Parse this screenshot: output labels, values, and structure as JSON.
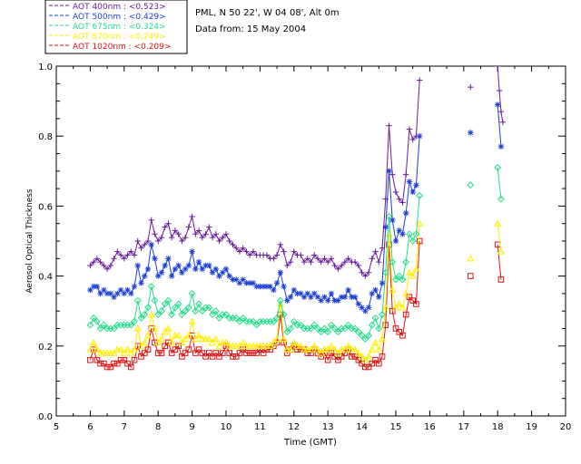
{
  "header": {
    "station": "PML, N 50 22', W 04 08', Alt 0m",
    "date": "Data from: 15 May 2004"
  },
  "chart_data": {
    "type": "line",
    "xlabel": "Time (GMT)",
    "ylabel": "Aerosol Optical Thickness",
    "xlim": [
      5,
      20
    ],
    "ylim": [
      0.0,
      1.0
    ],
    "xticks": [
      "5",
      "6",
      "7",
      "8",
      "9",
      "10",
      "11",
      "12",
      "13",
      "14",
      "15",
      "16",
      "17",
      "18",
      "19",
      "20"
    ],
    "yticks": [
      "0.0",
      "0.2",
      "0.4",
      "0.6",
      "0.8",
      "1.0"
    ],
    "legend_position": "top-left",
    "series": [
      {
        "name": "AOT  400nm : <0.523>",
        "color": "#6a1b9a",
        "marker": "plus",
        "x": [
          6.0,
          6.1,
          6.2,
          6.3,
          6.4,
          6.5,
          6.6,
          6.7,
          6.8,
          6.9,
          7.0,
          7.1,
          7.2,
          7.3,
          7.4,
          7.5,
          7.6,
          7.7,
          7.8,
          7.9,
          8.0,
          8.1,
          8.2,
          8.3,
          8.4,
          8.5,
          8.6,
          8.7,
          8.8,
          8.9,
          9.0,
          9.1,
          9.2,
          9.3,
          9.4,
          9.5,
          9.6,
          9.7,
          9.8,
          9.9,
          10.0,
          10.1,
          10.2,
          10.3,
          10.4,
          10.5,
          10.6,
          10.7,
          10.8,
          10.9,
          11.0,
          11.1,
          11.2,
          11.3,
          11.4,
          11.5,
          11.6,
          11.7,
          11.8,
          11.9,
          12.0,
          12.1,
          12.2,
          12.3,
          12.4,
          12.5,
          12.6,
          12.7,
          12.8,
          12.9,
          13.0,
          13.1,
          13.2,
          13.3,
          13.4,
          13.5,
          13.6,
          13.7,
          13.8,
          13.9,
          14.0,
          14.1,
          14.2,
          14.3,
          14.4,
          14.5,
          14.6,
          14.7,
          14.8,
          14.9,
          15.0,
          15.1,
          15.2,
          15.3,
          15.4,
          15.5,
          15.6,
          15.7,
          17.2,
          18.0,
          18.05,
          18.1,
          18.15
        ],
        "values": [
          0.43,
          0.44,
          0.45,
          0.44,
          0.43,
          0.42,
          0.43,
          0.45,
          0.47,
          0.46,
          0.45,
          0.46,
          0.47,
          0.46,
          0.5,
          0.48,
          0.49,
          0.5,
          0.56,
          0.52,
          0.5,
          0.51,
          0.54,
          0.55,
          0.51,
          0.53,
          0.52,
          0.5,
          0.51,
          0.54,
          0.57,
          0.52,
          0.53,
          0.51,
          0.52,
          0.54,
          0.51,
          0.52,
          0.5,
          0.51,
          0.52,
          0.5,
          0.49,
          0.48,
          0.47,
          0.48,
          0.47,
          0.46,
          0.47,
          0.46,
          0.46,
          0.46,
          0.46,
          0.45,
          0.45,
          0.46,
          0.49,
          0.47,
          0.43,
          0.44,
          0.47,
          0.46,
          0.46,
          0.44,
          0.45,
          0.44,
          0.46,
          0.45,
          0.44,
          0.45,
          0.44,
          0.45,
          0.43,
          0.42,
          0.43,
          0.44,
          0.45,
          0.44,
          0.44,
          0.43,
          0.41,
          0.4,
          0.41,
          0.45,
          0.47,
          0.44,
          0.48,
          0.62,
          0.83,
          0.69,
          0.64,
          0.62,
          0.61,
          0.69,
          0.82,
          0.79,
          0.8,
          0.96,
          0.94,
          1.0,
          0.93,
          0.87,
          0.84
        ]
      },
      {
        "name": "AOT  500nm : <0.429>",
        "color": "#1a3fd6",
        "marker": "asterisk",
        "x": [
          6.0,
          6.1,
          6.2,
          6.3,
          6.4,
          6.5,
          6.6,
          6.7,
          6.8,
          6.9,
          7.0,
          7.1,
          7.2,
          7.3,
          7.4,
          7.5,
          7.6,
          7.7,
          7.8,
          7.9,
          8.0,
          8.1,
          8.2,
          8.3,
          8.4,
          8.5,
          8.6,
          8.7,
          8.8,
          8.9,
          9.0,
          9.1,
          9.2,
          9.3,
          9.4,
          9.5,
          9.6,
          9.7,
          9.8,
          9.9,
          10.0,
          10.1,
          10.2,
          10.3,
          10.4,
          10.5,
          10.6,
          10.7,
          10.8,
          10.9,
          11.0,
          11.1,
          11.2,
          11.3,
          11.4,
          11.5,
          11.6,
          11.7,
          11.8,
          11.9,
          12.0,
          12.1,
          12.2,
          12.3,
          12.4,
          12.5,
          12.6,
          12.7,
          12.8,
          12.9,
          13.0,
          13.1,
          13.2,
          13.3,
          13.4,
          13.5,
          13.6,
          13.7,
          13.8,
          13.9,
          14.0,
          14.1,
          14.2,
          14.3,
          14.4,
          14.5,
          14.6,
          14.7,
          14.8,
          14.9,
          15.0,
          15.1,
          15.2,
          15.3,
          15.4,
          15.5,
          15.6,
          15.7,
          17.2,
          18.0,
          18.1
        ],
        "values": [
          0.36,
          0.37,
          0.37,
          0.35,
          0.36,
          0.35,
          0.35,
          0.34,
          0.35,
          0.36,
          0.35,
          0.36,
          0.35,
          0.37,
          0.43,
          0.38,
          0.4,
          0.42,
          0.49,
          0.45,
          0.4,
          0.41,
          0.43,
          0.45,
          0.4,
          0.42,
          0.43,
          0.41,
          0.42,
          0.43,
          0.47,
          0.42,
          0.44,
          0.42,
          0.43,
          0.43,
          0.41,
          0.42,
          0.4,
          0.41,
          0.42,
          0.4,
          0.39,
          0.39,
          0.38,
          0.39,
          0.38,
          0.38,
          0.38,
          0.37,
          0.37,
          0.37,
          0.37,
          0.37,
          0.36,
          0.38,
          0.41,
          0.37,
          0.33,
          0.34,
          0.36,
          0.35,
          0.35,
          0.34,
          0.35,
          0.34,
          0.35,
          0.34,
          0.33,
          0.34,
          0.33,
          0.35,
          0.33,
          0.33,
          0.34,
          0.34,
          0.36,
          0.34,
          0.34,
          0.32,
          0.31,
          0.3,
          0.31,
          0.35,
          0.36,
          0.34,
          0.38,
          0.54,
          0.7,
          0.56,
          0.5,
          0.53,
          0.52,
          0.58,
          0.67,
          0.64,
          0.66,
          0.8,
          0.81,
          0.89,
          0.77
        ]
      },
      {
        "name": "AOT  675nm : <0.324>",
        "color": "#22dd88",
        "marker": "diamond",
        "x": [
          6.0,
          6.1,
          6.2,
          6.3,
          6.4,
          6.5,
          6.6,
          6.7,
          6.8,
          6.9,
          7.0,
          7.1,
          7.2,
          7.3,
          7.4,
          7.5,
          7.6,
          7.7,
          7.8,
          7.9,
          8.0,
          8.1,
          8.2,
          8.3,
          8.4,
          8.5,
          8.6,
          8.7,
          8.8,
          8.9,
          9.0,
          9.1,
          9.2,
          9.3,
          9.4,
          9.5,
          9.6,
          9.7,
          9.8,
          9.9,
          10.0,
          10.1,
          10.2,
          10.3,
          10.4,
          10.5,
          10.6,
          10.7,
          10.8,
          10.9,
          11.0,
          11.1,
          11.2,
          11.3,
          11.4,
          11.5,
          11.6,
          11.7,
          11.8,
          11.9,
          12.0,
          12.1,
          12.2,
          12.3,
          12.4,
          12.5,
          12.6,
          12.7,
          12.8,
          12.9,
          13.0,
          13.1,
          13.2,
          13.3,
          13.4,
          13.5,
          13.6,
          13.7,
          13.8,
          13.9,
          14.0,
          14.1,
          14.2,
          14.3,
          14.4,
          14.5,
          14.6,
          14.7,
          14.8,
          14.9,
          15.0,
          15.1,
          15.2,
          15.3,
          15.4,
          15.5,
          15.6,
          15.7,
          17.2,
          18.0,
          18.1
        ],
        "values": [
          0.26,
          0.28,
          0.27,
          0.25,
          0.26,
          0.25,
          0.25,
          0.25,
          0.26,
          0.26,
          0.26,
          0.26,
          0.26,
          0.27,
          0.33,
          0.28,
          0.29,
          0.31,
          0.37,
          0.33,
          0.29,
          0.3,
          0.32,
          0.33,
          0.29,
          0.31,
          0.32,
          0.29,
          0.3,
          0.31,
          0.35,
          0.3,
          0.32,
          0.3,
          0.31,
          0.31,
          0.29,
          0.3,
          0.28,
          0.29,
          0.29,
          0.28,
          0.28,
          0.28,
          0.27,
          0.28,
          0.27,
          0.27,
          0.27,
          0.26,
          0.27,
          0.27,
          0.27,
          0.27,
          0.27,
          0.28,
          0.33,
          0.29,
          0.24,
          0.25,
          0.27,
          0.26,
          0.26,
          0.25,
          0.25,
          0.25,
          0.26,
          0.25,
          0.24,
          0.25,
          0.24,
          0.26,
          0.25,
          0.24,
          0.25,
          0.25,
          0.26,
          0.25,
          0.25,
          0.24,
          0.23,
          0.22,
          0.23,
          0.26,
          0.28,
          0.25,
          0.29,
          0.41,
          0.57,
          0.44,
          0.39,
          0.4,
          0.39,
          0.44,
          0.52,
          0.5,
          0.52,
          0.63,
          0.66,
          0.71,
          0.62
        ]
      },
      {
        "name": "AOT  870nm : <0.249>",
        "color": "#ffee00",
        "marker": "triangle",
        "x": [
          6.0,
          6.1,
          6.2,
          6.3,
          6.4,
          6.5,
          6.6,
          6.7,
          6.8,
          6.9,
          7.0,
          7.1,
          7.2,
          7.3,
          7.4,
          7.5,
          7.6,
          7.7,
          7.8,
          7.9,
          8.0,
          8.1,
          8.2,
          8.3,
          8.4,
          8.5,
          8.6,
          8.7,
          8.8,
          8.9,
          9.0,
          9.1,
          9.2,
          9.3,
          9.4,
          9.5,
          9.6,
          9.7,
          9.8,
          9.9,
          10.0,
          10.1,
          10.2,
          10.3,
          10.4,
          10.5,
          10.6,
          10.7,
          10.8,
          10.9,
          11.0,
          11.1,
          11.2,
          11.3,
          11.4,
          11.5,
          11.6,
          11.7,
          11.8,
          11.9,
          12.0,
          12.1,
          12.2,
          12.3,
          12.4,
          12.5,
          12.6,
          12.7,
          12.8,
          12.9,
          13.0,
          13.1,
          13.2,
          13.3,
          13.4,
          13.5,
          13.6,
          13.7,
          13.8,
          13.9,
          14.0,
          14.1,
          14.2,
          14.3,
          14.4,
          14.5,
          14.6,
          14.7,
          14.8,
          14.9,
          15.0,
          15.1,
          15.2,
          15.3,
          15.4,
          15.5,
          15.6,
          15.7,
          17.2,
          18.0,
          18.1
        ],
        "values": [
          0.19,
          0.21,
          0.19,
          0.18,
          0.18,
          0.18,
          0.18,
          0.18,
          0.19,
          0.19,
          0.18,
          0.19,
          0.18,
          0.19,
          0.25,
          0.2,
          0.21,
          0.23,
          0.29,
          0.25,
          0.21,
          0.22,
          0.24,
          0.25,
          0.21,
          0.23,
          0.23,
          0.21,
          0.22,
          0.23,
          0.27,
          0.22,
          0.23,
          0.22,
          0.22,
          0.22,
          0.21,
          0.22,
          0.2,
          0.21,
          0.21,
          0.2,
          0.2,
          0.2,
          0.2,
          0.21,
          0.2,
          0.2,
          0.2,
          0.2,
          0.2,
          0.2,
          0.2,
          0.2,
          0.21,
          0.22,
          0.32,
          0.22,
          0.19,
          0.19,
          0.21,
          0.2,
          0.2,
          0.19,
          0.19,
          0.19,
          0.2,
          0.19,
          0.18,
          0.19,
          0.19,
          0.2,
          0.19,
          0.18,
          0.19,
          0.19,
          0.2,
          0.19,
          0.19,
          0.18,
          0.17,
          0.16,
          0.17,
          0.19,
          0.21,
          0.19,
          0.22,
          0.31,
          0.52,
          0.36,
          0.31,
          0.32,
          0.31,
          0.35,
          0.41,
          0.4,
          0.42,
          0.55,
          0.45,
          0.55,
          0.47
        ]
      },
      {
        "name": "AOT 1020nm : <0.209>",
        "color": "#dd1111",
        "marker": "square",
        "x": [
          6.0,
          6.1,
          6.2,
          6.3,
          6.4,
          6.5,
          6.6,
          6.7,
          6.8,
          6.9,
          7.0,
          7.1,
          7.2,
          7.3,
          7.4,
          7.5,
          7.6,
          7.7,
          7.8,
          7.9,
          8.0,
          8.1,
          8.2,
          8.3,
          8.4,
          8.5,
          8.6,
          8.7,
          8.8,
          8.9,
          9.0,
          9.1,
          9.2,
          9.3,
          9.4,
          9.5,
          9.6,
          9.7,
          9.8,
          9.9,
          10.0,
          10.1,
          10.2,
          10.3,
          10.4,
          10.5,
          10.6,
          10.7,
          10.8,
          10.9,
          11.0,
          11.1,
          11.2,
          11.3,
          11.4,
          11.5,
          11.6,
          11.7,
          11.8,
          11.9,
          12.0,
          12.1,
          12.2,
          12.3,
          12.4,
          12.5,
          12.6,
          12.7,
          12.8,
          12.9,
          13.0,
          13.1,
          13.2,
          13.3,
          13.4,
          13.5,
          13.6,
          13.7,
          13.8,
          13.9,
          14.0,
          14.1,
          14.2,
          14.3,
          14.4,
          14.5,
          14.6,
          14.7,
          14.8,
          14.9,
          15.0,
          15.1,
          15.2,
          15.3,
          15.4,
          15.5,
          15.6,
          15.7,
          17.2,
          18.0,
          18.1
        ],
        "values": [
          0.16,
          0.19,
          0.16,
          0.15,
          0.15,
          0.14,
          0.14,
          0.15,
          0.15,
          0.16,
          0.16,
          0.15,
          0.14,
          0.16,
          0.2,
          0.17,
          0.18,
          0.19,
          0.25,
          0.21,
          0.18,
          0.18,
          0.2,
          0.21,
          0.18,
          0.19,
          0.2,
          0.17,
          0.18,
          0.19,
          0.23,
          0.18,
          0.19,
          0.18,
          0.17,
          0.18,
          0.17,
          0.18,
          0.17,
          0.18,
          0.2,
          0.18,
          0.17,
          0.17,
          0.18,
          0.19,
          0.18,
          0.18,
          0.18,
          0.18,
          0.19,
          0.18,
          0.19,
          0.19,
          0.2,
          0.21,
          0.29,
          0.21,
          0.18,
          0.19,
          0.2,
          0.19,
          0.19,
          0.19,
          0.18,
          0.18,
          0.19,
          0.18,
          0.17,
          0.18,
          0.16,
          0.18,
          0.17,
          0.16,
          0.17,
          0.18,
          0.19,
          0.17,
          0.17,
          0.16,
          0.15,
          0.14,
          0.14,
          0.15,
          0.16,
          0.15,
          0.17,
          0.26,
          0.49,
          0.3,
          0.25,
          0.24,
          0.23,
          0.29,
          0.34,
          0.33,
          0.32,
          0.5,
          0.4,
          0.49,
          0.39
        ]
      }
    ],
    "gaps_after_x": [
      15.7,
      17.2
    ]
  }
}
